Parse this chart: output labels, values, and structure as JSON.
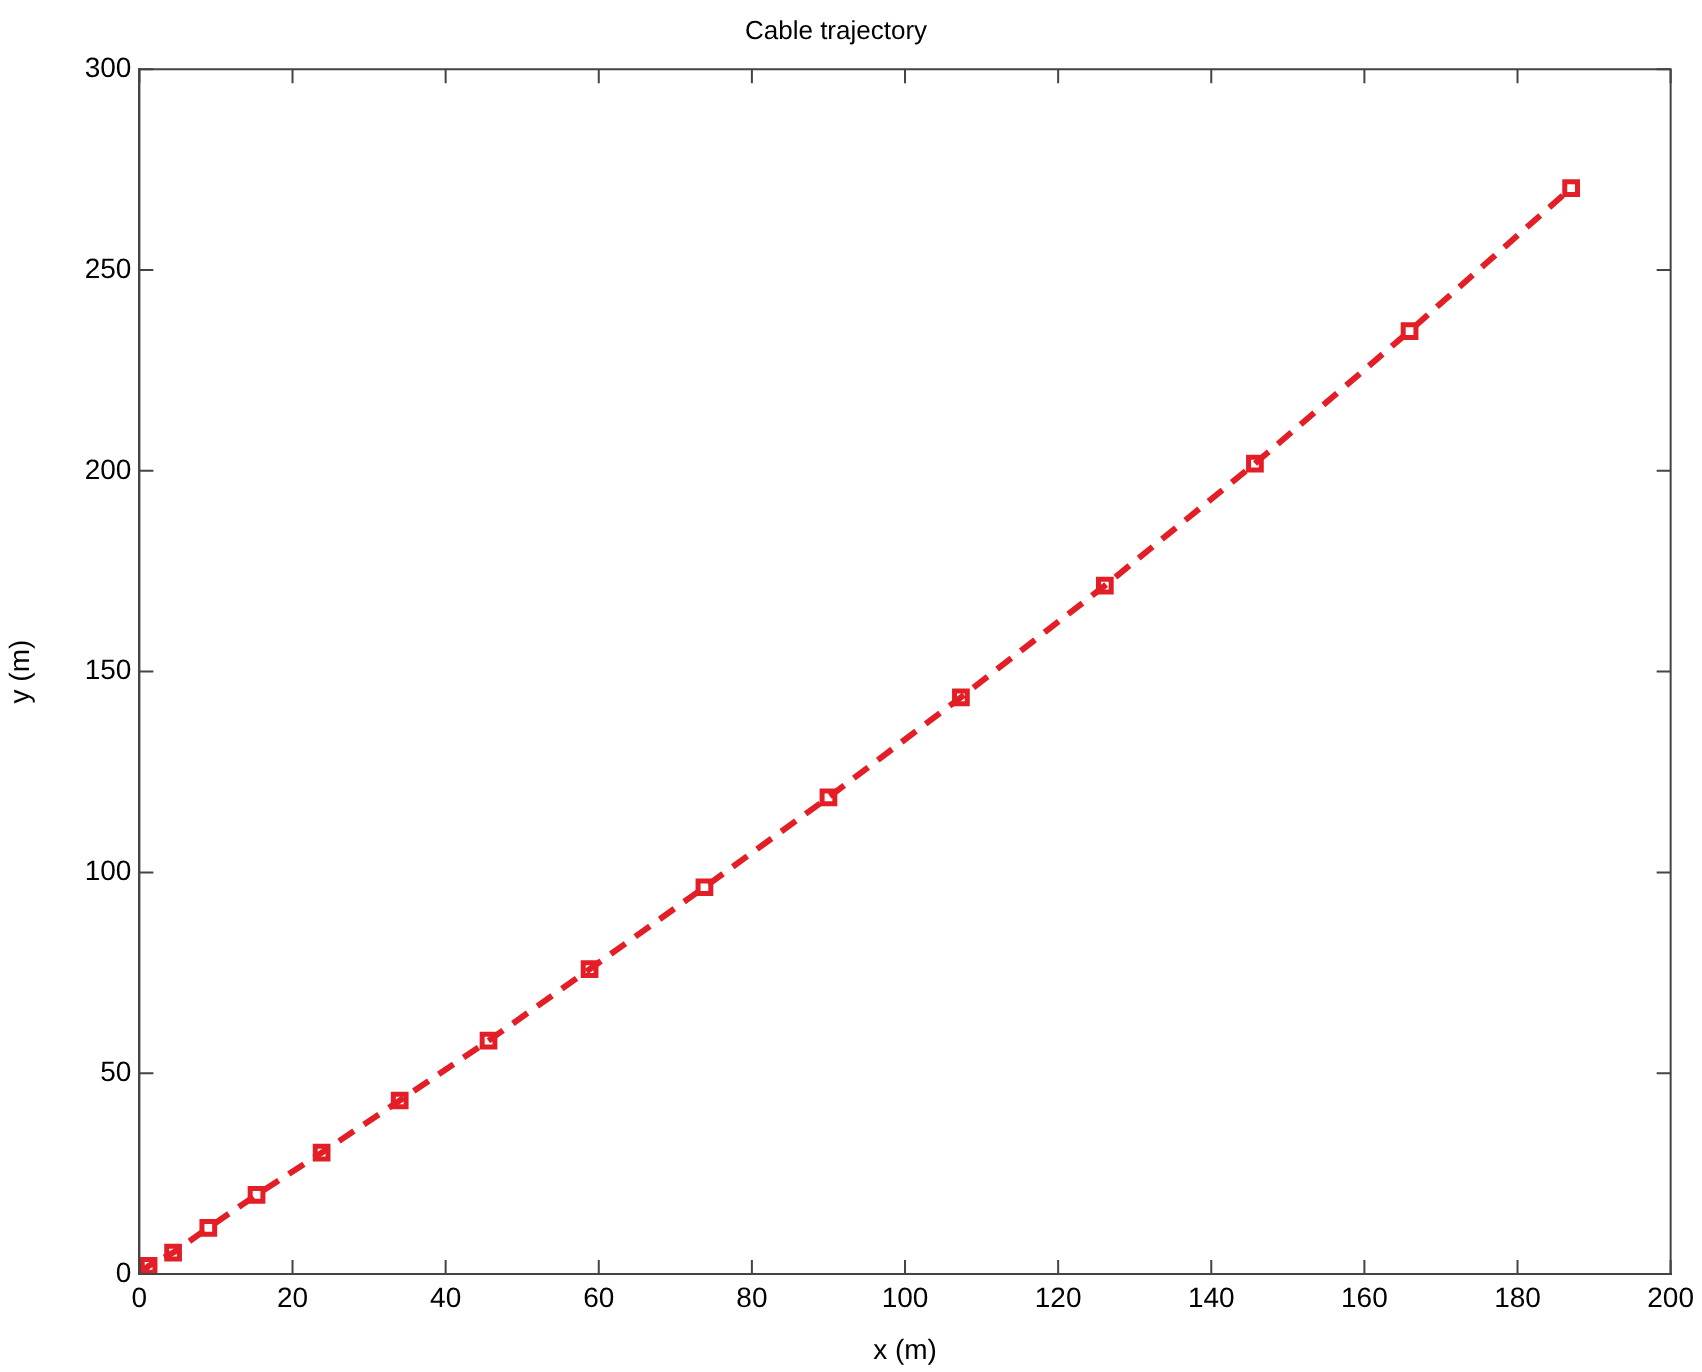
{
  "chart_data": {
    "type": "line",
    "title": "Cable trajectory",
    "xlabel": "x (m)",
    "ylabel": "y (m)",
    "xlim": [
      0,
      200
    ],
    "xticks": [
      0,
      20,
      40,
      60,
      80,
      100,
      120,
      140,
      160,
      180,
      200
    ],
    "ylim": [
      0,
      300
    ],
    "yticks": [
      0,
      50,
      100,
      150,
      200,
      250,
      300
    ],
    "grid": false,
    "legend": false,
    "marker": "square",
    "line_style": "dashed",
    "series": [
      {
        "color": "#e41e26",
        "x": [
          0,
          1.2,
          4.4,
          9.0,
          15.3,
          23.8,
          34.0,
          45.6,
          58.8,
          73.8,
          90.0,
          107.3,
          126.1,
          145.7,
          165.9,
          187.0
        ],
        "values": [
          0,
          2,
          5.3,
          11.5,
          19.7,
          30.2,
          43.2,
          58.1,
          75.9,
          96.3,
          118.7,
          143.6,
          171.4,
          201.8,
          234.8,
          270.4
        ]
      }
    ]
  }
}
